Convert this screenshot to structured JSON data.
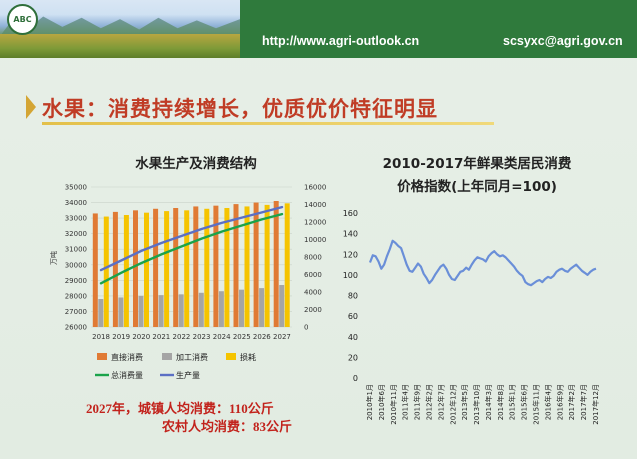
{
  "header": {
    "logo_text": "ABC",
    "url": "http://www.agri-outlook.cn",
    "email": "scsyxc@agri.gov.cn"
  },
  "slide_title": "水果：消费持续增长，优质优价特征明显",
  "notes": {
    "line1": "2027年，城镇人均消费：110公斤",
    "line2": "农村人均消费：83公斤"
  },
  "colors": {
    "header_green": "#2f7a3c",
    "title_red": "#c03c25",
    "bar_direct": "#e07a34",
    "bar_process": "#a5a5a5",
    "bar_loss": "#f5c400",
    "line_consumption": "#1aa34a",
    "line_production": "#5b6fc4",
    "line_price": "#6a8fd8"
  },
  "chart_data": [
    {
      "type": "bar",
      "title": "水果生产及消费结构",
      "ylabel": "万吨",
      "categories": [
        "2018",
        "2019",
        "2020",
        "2021",
        "2022",
        "2023",
        "2024",
        "2025",
        "2026",
        "2027"
      ],
      "left_axis": {
        "ylim": [
          26000,
          35000
        ],
        "ticks": [
          26000,
          27000,
          28000,
          29000,
          30000,
          31000,
          32000,
          33000,
          34000,
          35000
        ]
      },
      "right_axis": {
        "ylim": [
          0,
          16000
        ],
        "ticks": [
          0,
          2000,
          4000,
          6000,
          8000,
          10000,
          12000,
          14000,
          16000
        ]
      },
      "bar_series": [
        {
          "name": "直接消费",
          "axis": "left",
          "values": [
            33300,
            33400,
            33500,
            33600,
            33650,
            33750,
            33800,
            33900,
            34000,
            34100
          ]
        },
        {
          "name": "加工消费",
          "axis": "left",
          "values": [
            27800,
            27900,
            28000,
            28050,
            28100,
            28200,
            28300,
            28400,
            28500,
            28700
          ]
        },
        {
          "name": "损耗",
          "axis": "left",
          "values": [
            33100,
            33200,
            33350,
            33450,
            33500,
            33600,
            33650,
            33750,
            33850,
            33950
          ]
        }
      ],
      "line_series": [
        {
          "name": "总消费量",
          "axis": "right",
          "values": [
            5000,
            6200,
            7300,
            8300,
            9200,
            10100,
            10900,
            11600,
            12300,
            12900
          ]
        },
        {
          "name": "生产量",
          "axis": "right",
          "values": [
            6500,
            7600,
            8700,
            9600,
            10400,
            11200,
            11900,
            12500,
            13100,
            13700
          ]
        }
      ],
      "legend": [
        "直接消费",
        "加工消费",
        "损耗",
        "总消费量",
        "生产量"
      ],
      "legend_position": "bottom",
      "grid": true
    },
    {
      "type": "line",
      "title": "2010-2017年鲜果类居民消费价格指数(上年同月=100)",
      "title_line1": "2010-2017年鲜果类居民消费",
      "title_line2": "价格指数(上年同月=100)",
      "ylim": [
        0,
        160
      ],
      "yticks": [
        0,
        20,
        40,
        60,
        80,
        100,
        120,
        140,
        160
      ],
      "tick_labels": [
        "2010年1月",
        "2010年6月",
        "2010年11月",
        "2011年4月",
        "2011年9月",
        "2012年2月",
        "2012年7月",
        "2012年12月",
        "2013年5月",
        "2013年10月",
        "2014年3月",
        "2014年8月",
        "2015年1月",
        "2015年6月",
        "2015年11月",
        "2016年4月",
        "2016年9月",
        "2017年2月",
        "2017年7月",
        "2017年12月"
      ],
      "series": [
        {
          "name": "鲜果类居民消费价格指数",
          "values": [
            112,
            119,
            118,
            113,
            106,
            110,
            118,
            125,
            133,
            131,
            128,
            126,
            118,
            110,
            104,
            103,
            107,
            111,
            108,
            101,
            97,
            92,
            95,
            100,
            104,
            108,
            110,
            106,
            100,
            96,
            95,
            99,
            103,
            104,
            107,
            105,
            110,
            114,
            117,
            116,
            115,
            113,
            118,
            121,
            123,
            120,
            118,
            119,
            117,
            114,
            111,
            108,
            104,
            101,
            99,
            93,
            91,
            90,
            92,
            94,
            95,
            93,
            96,
            98,
            97,
            99,
            103,
            105,
            106,
            104,
            103,
            106,
            108,
            110,
            107,
            104,
            102,
            100,
            103,
            105,
            106
          ]
        }
      ],
      "grid": false
    }
  ]
}
